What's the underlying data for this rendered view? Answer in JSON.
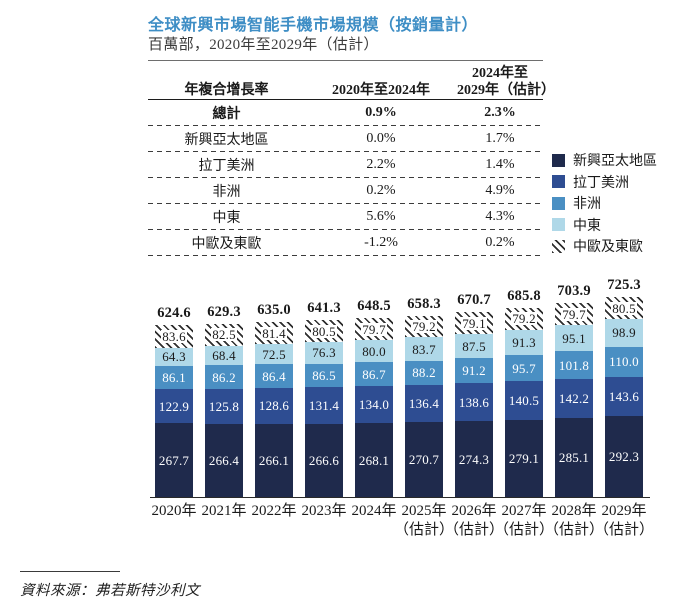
{
  "title": "全球新興市場智能手機市場規模（按銷量計）",
  "subtitle": "百萬部，2020年至2029年（估計）",
  "cagr_table": {
    "header": {
      "col1": "年複合增長率",
      "col2": "2020年至2024年",
      "col3_line1": "2024年至",
      "col3_line2": "2029年（估計）"
    },
    "rows": [
      {
        "label": "總計",
        "v1": "0.9%",
        "v2": "2.3%"
      },
      {
        "label": "新興亞太地區",
        "v1": "0.0%",
        "v2": "1.7%"
      },
      {
        "label": "拉丁美洲",
        "v1": "2.2%",
        "v2": "1.4%"
      },
      {
        "label": "非洲",
        "v1": "0.2%",
        "v2": "4.9%"
      },
      {
        "label": "中東",
        "v1": "5.6%",
        "v2": "4.3%"
      },
      {
        "label": "中歐及東歐",
        "v1": "-1.2%",
        "v2": "0.2%"
      }
    ]
  },
  "legend": {
    "items": [
      {
        "label": "新興亞太地區",
        "color": "#1F2A4C"
      },
      {
        "label": "拉丁美洲",
        "color": "#2E4D92"
      },
      {
        "label": "非洲",
        "color": "#4A8FC3"
      },
      {
        "label": "中東",
        "color": "#AFD8E8"
      },
      {
        "label": "中歐及東歐",
        "pattern": "diagonal-hatch"
      }
    ]
  },
  "chart_data": {
    "type": "bar",
    "stacked": true,
    "unit": "百萬部",
    "categories": [
      {
        "year": "2020年",
        "note": ""
      },
      {
        "year": "2021年",
        "note": ""
      },
      {
        "year": "2022年",
        "note": ""
      },
      {
        "year": "2023年",
        "note": ""
      },
      {
        "year": "2024年",
        "note": ""
      },
      {
        "year": "2025年",
        "note": "（估計）"
      },
      {
        "year": "2026年",
        "note": "（估計）"
      },
      {
        "year": "2027年",
        "note": "（估計）"
      },
      {
        "year": "2028年",
        "note": "（估計）"
      },
      {
        "year": "2029年",
        "note": "（估計）"
      }
    ],
    "series": [
      {
        "key": "emerging-apac",
        "name": "新興亞太地區",
        "color": "#1F2A4C",
        "label_color": "#ffffff",
        "values": [
          267.7,
          266.4,
          266.1,
          266.6,
          268.1,
          270.7,
          274.3,
          279.1,
          285.1,
          292.3
        ]
      },
      {
        "key": "latin-america",
        "name": "拉丁美洲",
        "color": "#2E4D92",
        "label_color": "#ffffff",
        "values": [
          122.9,
          125.8,
          128.6,
          131.4,
          134.0,
          136.4,
          138.6,
          140.5,
          142.2,
          143.6
        ]
      },
      {
        "key": "africa",
        "name": "非洲",
        "color": "#4A8FC3",
        "label_color": "#ffffff",
        "values": [
          86.1,
          86.2,
          86.4,
          86.5,
          86.7,
          88.2,
          91.2,
          95.7,
          101.8,
          110.0
        ]
      },
      {
        "key": "middle-east",
        "name": "中東",
        "color": "#AFD8E8",
        "label_color": "#1a1a1a",
        "values": [
          64.3,
          68.4,
          72.5,
          76.3,
          80.0,
          83.7,
          87.5,
          91.3,
          95.1,
          98.9
        ]
      },
      {
        "key": "central-eastern-europe",
        "name": "中歐及東歐",
        "pattern": "diagonal-hatch",
        "label_color": "#1a1a1a",
        "values": [
          83.6,
          82.5,
          81.4,
          80.5,
          79.7,
          79.2,
          79.1,
          79.2,
          79.7,
          80.5
        ]
      }
    ],
    "totals": [
      624.6,
      629.3,
      635.0,
      641.3,
      648.5,
      658.3,
      670.7,
      685.8,
      703.9,
      725.3
    ]
  },
  "source": "資料來源：弗若斯特沙利文"
}
